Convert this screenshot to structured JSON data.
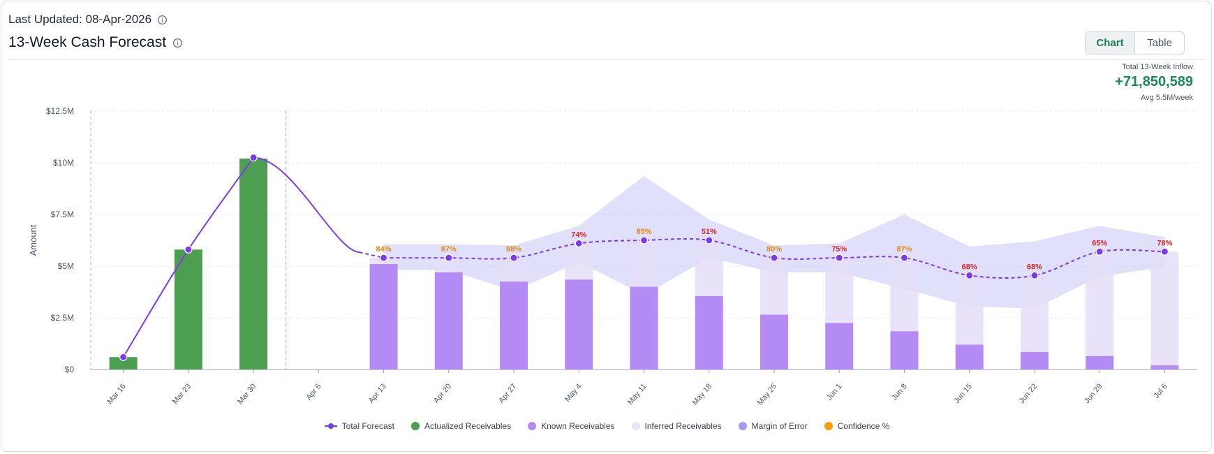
{
  "header": {
    "last_updated": "Last Updated: 08-Apr-2026",
    "title": "13-Week Cash Forecast"
  },
  "view_toggle": {
    "chart_label": "Chart",
    "table_label": "Table",
    "selected": "Chart"
  },
  "summary": {
    "label": "Total 13-Week Inflow",
    "value": "+71,850,589",
    "avg": "Avg 5.5M/week"
  },
  "legend": [
    {
      "label": "Total Forecast",
      "color": "#7c3aed",
      "kind": "line"
    },
    {
      "label": "Actualized Receivables",
      "color": "#4c9f50",
      "kind": "dot"
    },
    {
      "label": "Known Receivables",
      "color": "#b48af5",
      "kind": "dot"
    },
    {
      "label": "Inferred Receivables",
      "color": "#e9e4f9",
      "kind": "dot"
    },
    {
      "label": "Margin of Error",
      "color": "#a39af5",
      "kind": "dot"
    },
    {
      "label": "Confidence %",
      "color": "#f59e0b",
      "kind": "dot"
    }
  ],
  "chart_data": {
    "type": "bar",
    "ylabel": "Amount",
    "ylim": [
      0,
      12500000
    ],
    "yticks": [
      0,
      2500000,
      5000000,
      7500000,
      10000000,
      12500000
    ],
    "ytick_labels": [
      "$0",
      "$2.5M",
      "$5M",
      "$7.5M",
      "$10M",
      "$12.5M"
    ],
    "categories": [
      "Mar 16",
      "Mar 23",
      "Mar 30",
      "Apr 6",
      "Apr 13",
      "Apr 20",
      "Apr 27",
      "May 4",
      "May 11",
      "May 18",
      "May 25",
      "Jun 1",
      "Jun 8",
      "Jun 15",
      "Jun 22",
      "Jun 29",
      "Jul 6"
    ],
    "series": [
      {
        "name": "Actualized Receivables",
        "values": [
          600000,
          5800000,
          10200000,
          null,
          null,
          null,
          null,
          null,
          null,
          null,
          null,
          null,
          null,
          null,
          null,
          null,
          null
        ]
      },
      {
        "name": "Known Receivables",
        "values": [
          null,
          null,
          null,
          null,
          5100000,
          4700000,
          4250000,
          4350000,
          4000000,
          3550000,
          2650000,
          2250000,
          1850000,
          1200000,
          850000,
          650000,
          200000
        ]
      },
      {
        "name": "Inferred Receivables",
        "values": [
          null,
          null,
          null,
          null,
          300000,
          700000,
          1150000,
          1750000,
          2250000,
          2700000,
          2750000,
          3150000,
          3550000,
          3350000,
          3700000,
          5050000,
          5500000
        ]
      },
      {
        "name": "Total Forecast",
        "values": [
          600000,
          5800000,
          10250000,
          null,
          5400000,
          5400000,
          5400000,
          6100000,
          6250000,
          6250000,
          5400000,
          5400000,
          5400000,
          4550000,
          4550000,
          5700000,
          5700000
        ]
      },
      {
        "name": "Margin of Error",
        "upper": [
          null,
          null,
          null,
          null,
          6050000,
          6050000,
          6000000,
          6950000,
          9350000,
          7250000,
          6000000,
          6100000,
          7500000,
          5950000,
          6200000,
          6950000,
          6400000
        ],
        "lower": [
          null,
          null,
          null,
          null,
          4800000,
          4800000,
          3800000,
          5200000,
          3600000,
          5400000,
          4700000,
          4700000,
          3900000,
          3050000,
          2950000,
          4500000,
          4950000
        ]
      }
    ],
    "confidence": [
      null,
      null,
      null,
      null,
      "84%",
      "87%",
      "88%",
      "74%",
      "85%",
      "51%",
      "80%",
      "75%",
      "87%",
      "68%",
      "68%",
      "65%",
      "78%"
    ],
    "confidence_colors": {
      "high": "#e0860b",
      "low": "#dc2626"
    },
    "actual_forecast_divider_after": "Mar 30",
    "grid": "horizontal-dashed"
  }
}
